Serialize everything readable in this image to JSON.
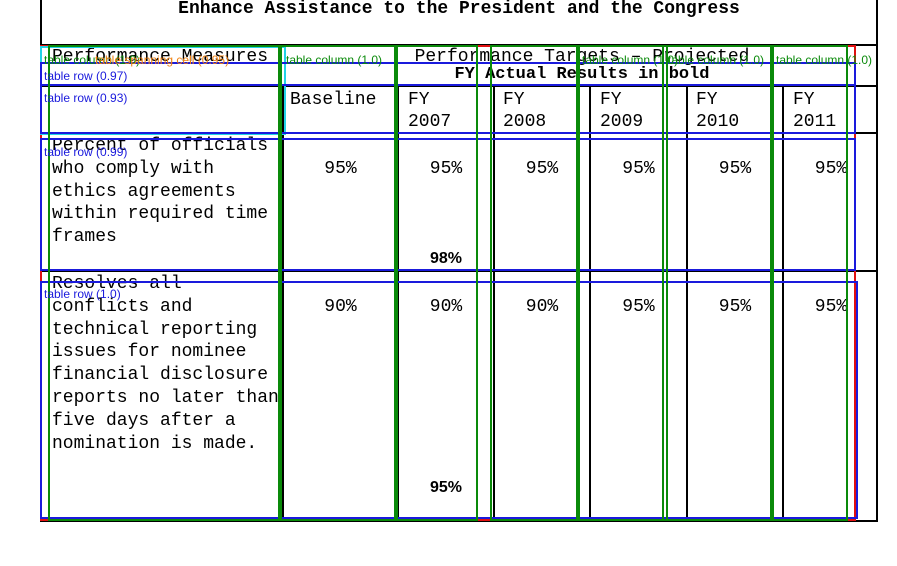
{
  "document": {
    "title": "Enhance Assistance to the President and the Congress"
  },
  "table": {
    "header": {
      "measures_label": "Performance Measures",
      "targets_label": "Performance Targets – Projected",
      "actual_label": "FY Actual Results in bold",
      "columns": [
        "Baseline",
        "FY\n2007",
        "FY\n2008",
        "FY\n2009",
        "FY\n2010",
        "FY\n2011"
      ]
    },
    "rows": [
      {
        "measure": "Percent of officials who comply with ethics agreements within required time frames",
        "values": [
          "95%",
          "95%",
          "95%",
          "95%",
          "95%",
          "95%"
        ],
        "actual_2007": "98%"
      },
      {
        "measure": "Resolves all conflicts and technical reporting issues for nominee financial disclosure reports no later than five days after a nomination is made.",
        "values": [
          "90%",
          "90%",
          "90%",
          "95%",
          "95%",
          "95%"
        ],
        "actual_2007": "95%"
      }
    ]
  },
  "overlays": {
    "labels": [
      "table column (1.0)",
      "table row (0.97)",
      "table row (0.93)",
      "table column (1.0)",
      "table column (1.0)",
      "table column (1.0)",
      "table row (0.99)",
      "table row (1.0)",
      "table spanning cell (0.95)",
      "table column (1.0)",
      "table column (1.0)"
    ],
    "colors": {
      "table": "#e01010",
      "row": "#1a1adc",
      "column": "#0a8a0a",
      "header": "#22d3e6",
      "spanning": "#f0a020"
    }
  }
}
